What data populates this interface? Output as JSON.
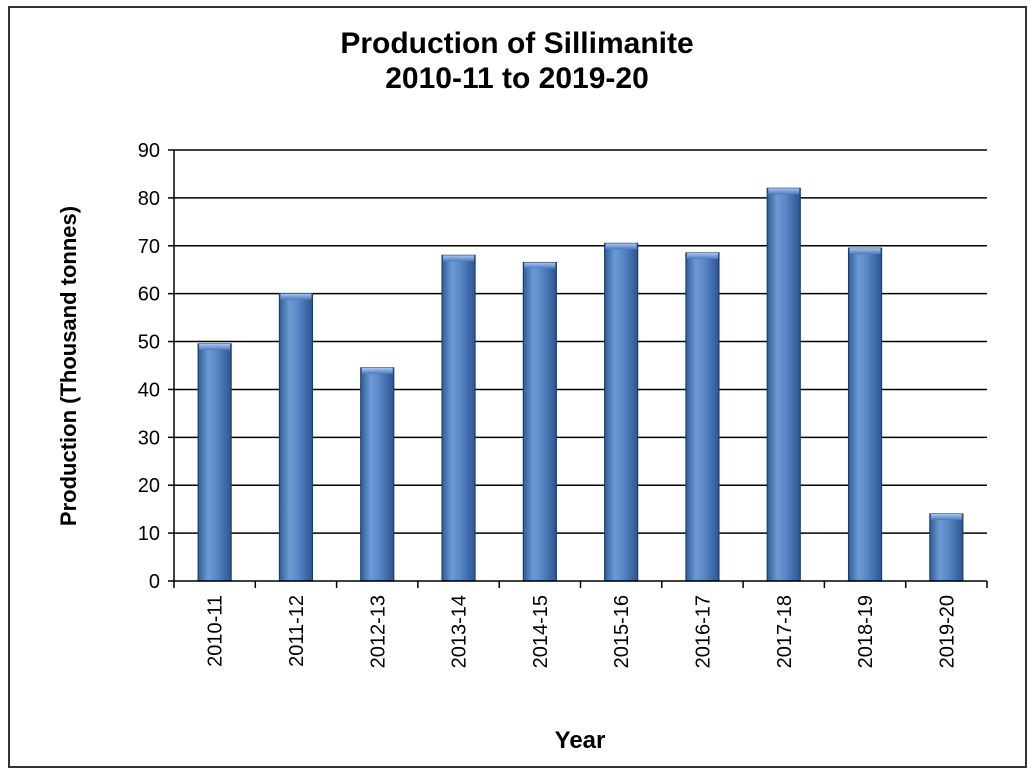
{
  "chart_data": {
    "type": "bar",
    "title": "Production of Sillimanite",
    "subtitle": "2010-11 to 2019-20",
    "xlabel": "Year",
    "ylabel": "Production (Thousand tonnes)",
    "categories": [
      "2010-11",
      "2011-12",
      "2012-13",
      "2013-14",
      "2014-15",
      "2015-16",
      "2016-17",
      "2017-18",
      "2018-19",
      "2019-20"
    ],
    "values": [
      49.5,
      60,
      44.5,
      68,
      66.5,
      70.5,
      68.5,
      82,
      69.5,
      14
    ],
    "ylim": [
      0,
      90
    ],
    "yticks": [
      0,
      10,
      20,
      30,
      40,
      50,
      60,
      70,
      80,
      90
    ],
    "grid": true,
    "legend": "none",
    "bar_color": "#4a79bd"
  }
}
